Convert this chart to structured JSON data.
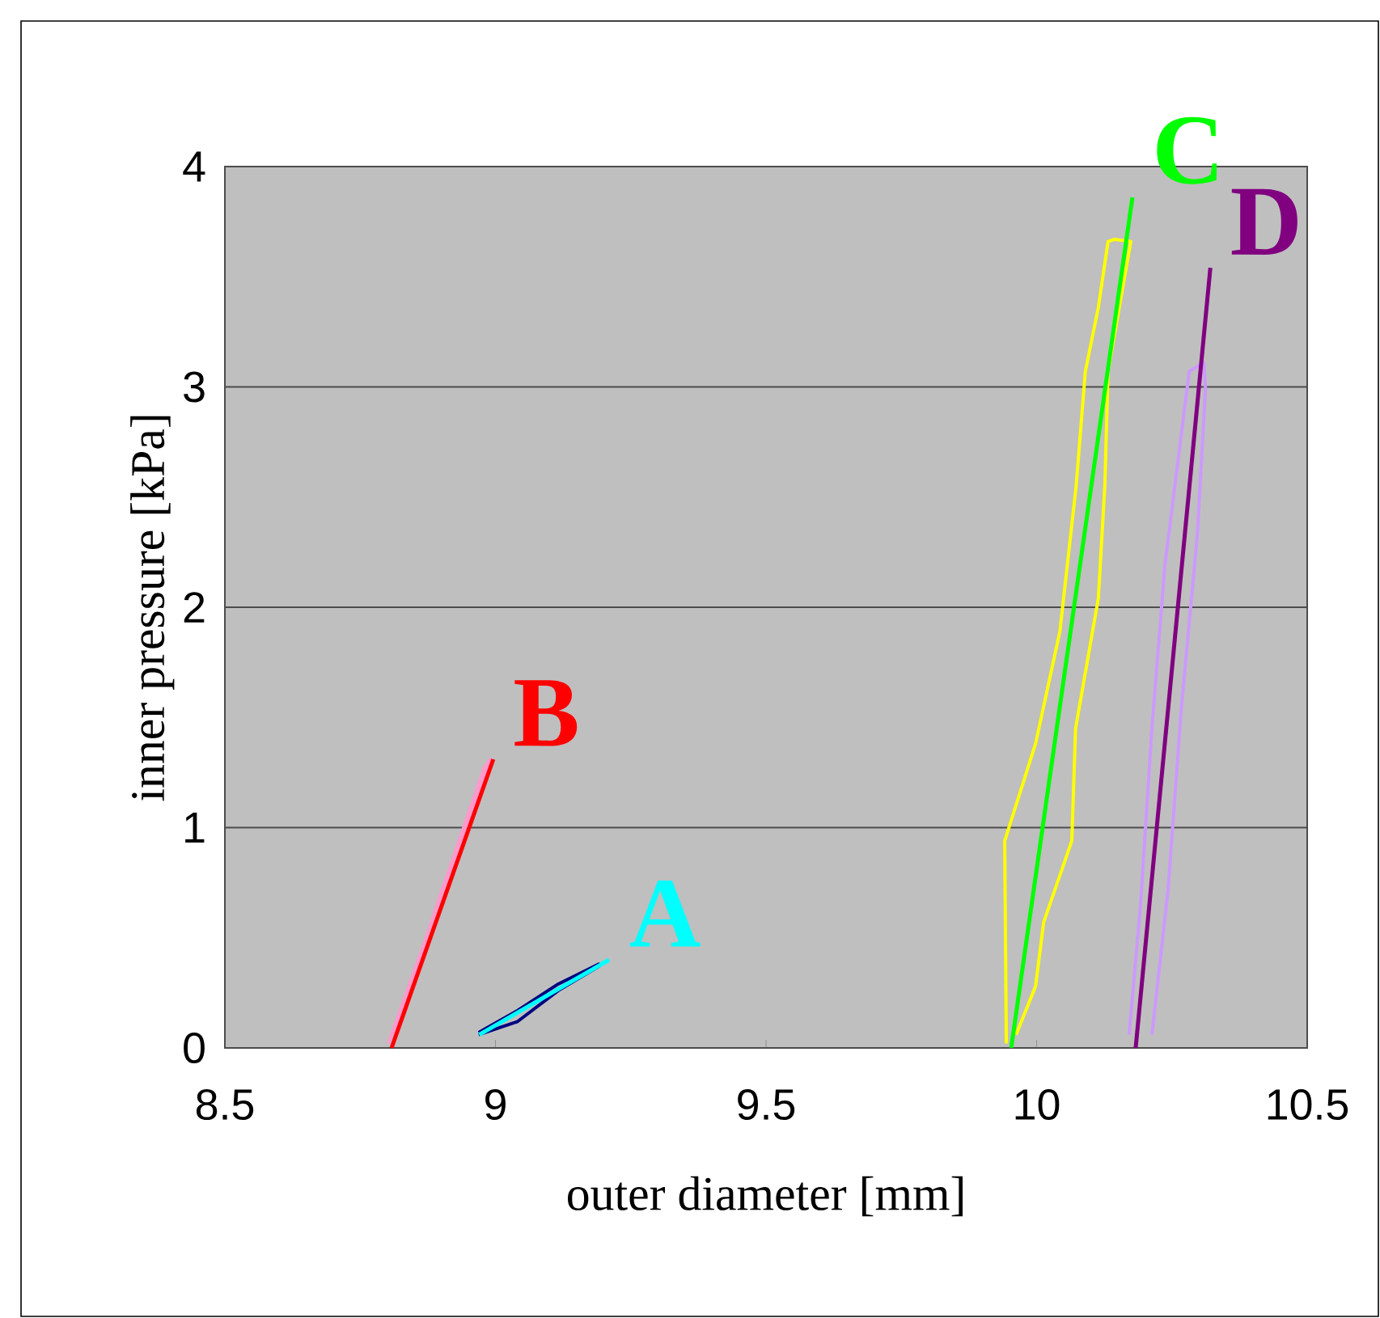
{
  "chart_data": {
    "type": "line",
    "xlabel": "outer diameter  [mm]",
    "ylabel": "inner pressure  [kPa]",
    "xlim": [
      8.5,
      10.5
    ],
    "ylim": [
      0,
      4
    ],
    "xticks": [
      8.5,
      9,
      9.5,
      10,
      10.5
    ],
    "yticks": [
      0,
      1,
      2,
      3,
      4
    ],
    "grid": "y",
    "series": [
      {
        "color": "#ff99cc",
        "x": [
          8.802,
          8.99,
          8.979,
          8.892,
          8.814
        ],
        "values": [
          0.02,
          1.31,
          1.27,
          0.65,
          0.06
        ]
      },
      {
        "name": "B",
        "color": "#ff0000",
        "x": [
          8.808,
          8.996
        ],
        "values": [
          0,
          1.31
        ]
      },
      {
        "color": "#000080",
        "x": [
          8.969,
          9.041,
          9.116,
          9.191,
          9.191,
          9.116,
          9.041,
          8.969
        ],
        "values": [
          0.07,
          0.17,
          0.29,
          0.38,
          0.37,
          0.26,
          0.12,
          0.06
        ]
      },
      {
        "name": "A",
        "color": "#00ffff",
        "x": [
          8.97,
          9.21
        ],
        "values": [
          0.06,
          0.4
        ]
      },
      {
        "color": "#ffff00",
        "x": [
          9.944,
          9.941,
          9.998,
          10.043,
          10.073,
          10.09,
          10.114,
          10.132,
          10.144,
          10.174,
          10.132,
          10.126,
          10.114,
          10.072,
          10.065,
          10.013,
          9.998,
          9.962
        ],
        "values": [
          0.02,
          0.94,
          1.38,
          1.89,
          2.55,
          3.07,
          3.36,
          3.66,
          3.67,
          3.66,
          3.07,
          2.55,
          2.04,
          1.45,
          0.94,
          0.57,
          0.28,
          0.06
        ]
      },
      {
        "name": "C",
        "color": "#00ff00",
        "x": [
          9.953,
          10.177
        ],
        "values": [
          0,
          3.86
        ]
      },
      {
        "color": "#cc99ff",
        "x": [
          10.171,
          10.192,
          10.213,
          10.237,
          10.282,
          10.309,
          10.312,
          10.297,
          10.267,
          10.243,
          10.213
        ],
        "values": [
          0.06,
          0.65,
          1.45,
          2.19,
          3.07,
          3.11,
          2.99,
          2.33,
          1.53,
          0.72,
          0.06
        ]
      },
      {
        "name": "D",
        "color": "#800080",
        "x": [
          10.183,
          10.321
        ],
        "values": [
          0,
          3.54
        ]
      }
    ]
  }
}
